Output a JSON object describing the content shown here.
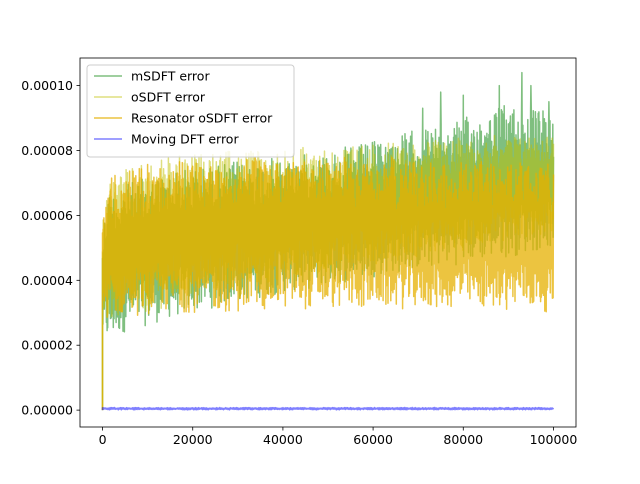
{
  "chart_data": {
    "type": "line",
    "title": "",
    "xlabel": "",
    "ylabel": "",
    "xlim": [
      -5000,
      105000
    ],
    "ylim": [
      -5.2e-06,
      0.0001085
    ],
    "x_ticks": [
      0,
      20000,
      40000,
      60000,
      80000,
      100000
    ],
    "x_tick_labels": [
      "0",
      "20000",
      "40000",
      "60000",
      "80000",
      "100000"
    ],
    "y_ticks": [
      0.0,
      2e-05,
      4e-05,
      6e-05,
      8e-05,
      0.0001
    ],
    "y_tick_labels": [
      "0.00000",
      "0.00002",
      "0.00004",
      "0.00006",
      "0.00008",
      "0.00010"
    ],
    "grid": false,
    "legend_position": "upper-left",
    "series": [
      {
        "name": "mSDFT error",
        "color": "#008000",
        "opacity": 0.5,
        "x": [
          0,
          1000,
          5000,
          10000,
          15000,
          20000,
          30000,
          40000,
          50000,
          60000,
          70000,
          80000,
          90000,
          100000
        ],
        "upper": [
          5.5e-05,
          6.8e-05,
          7e-05,
          7.2e-05,
          7.4e-05,
          7.5e-05,
          7.7e-05,
          7.8e-05,
          8e-05,
          8.3e-05,
          8.7e-05,
          9e-05,
          9.5e-05,
          9.2e-05
        ],
        "lower": [
          2.2e-05,
          2e-05,
          2.4e-05,
          2.6e-05,
          2.8e-05,
          3e-05,
          3.3e-05,
          3.6e-05,
          3.8e-05,
          4.1e-05,
          4.3e-05,
          4.5e-05,
          4.7e-05,
          5e-05
        ],
        "peaks": [
          [
            71000,
            9.3e-05
          ],
          [
            75000,
            9.8e-05
          ],
          [
            80000,
            9.7e-05
          ],
          [
            88000,
            0.0001
          ],
          [
            93000,
            0.000104
          ],
          [
            95000,
            0.0001
          ],
          [
            99000,
            9.5e-05
          ]
        ]
      },
      {
        "name": "oSDFT error",
        "color": "#bfbf00",
        "opacity": 0.5,
        "x": [
          0,
          1000,
          5000,
          10000,
          15000,
          20000,
          30000,
          40000,
          50000,
          60000,
          70000,
          80000,
          90000,
          100000
        ],
        "upper": [
          5.8e-05,
          7.2e-05,
          7.4e-05,
          7.7e-05,
          7.8e-05,
          7.9e-05,
          8e-05,
          8.1e-05,
          8.2e-05,
          8.2e-05,
          8.3e-05,
          8.4e-05,
          8.5e-05,
          8.6e-05
        ],
        "lower": [
          2.8e-05,
          2.6e-05,
          2.8e-05,
          3e-05,
          3.2e-05,
          3.5e-05,
          3.7e-05,
          4e-05,
          4.2e-05,
          4.5e-05,
          4.7e-05,
          4.9e-05,
          5.2e-05,
          5.4e-05
        ]
      },
      {
        "name": "Resonator oSDFT error",
        "color": "#e6b000",
        "opacity": 0.75,
        "x": [
          0,
          1000,
          5000,
          10000,
          15000,
          20000,
          30000,
          40000,
          50000,
          60000,
          70000,
          80000,
          90000,
          100000
        ],
        "upper": [
          6e-05,
          7.2e-05,
          7.4e-05,
          7.6e-05,
          7.7e-05,
          7.7e-05,
          7.8e-05,
          7.8e-05,
          7.8e-05,
          7.8e-05,
          7.8e-05,
          7.7e-05,
          7.7e-05,
          7.6e-05
        ],
        "lower": [
          3e-05,
          2.8e-05,
          2.9e-05,
          2.9e-05,
          3e-05,
          3e-05,
          3e-05,
          3.1e-05,
          3.1e-05,
          3.1e-05,
          3.1e-05,
          3.1e-05,
          3.1e-05,
          3e-05
        ]
      },
      {
        "name": "Moving DFT error",
        "color": "#0000ff",
        "opacity": 0.5,
        "x": [
          0,
          100000
        ],
        "upper": [
          8e-07,
          8e-07
        ],
        "lower": [
          1e-07,
          1e-07
        ]
      }
    ]
  }
}
